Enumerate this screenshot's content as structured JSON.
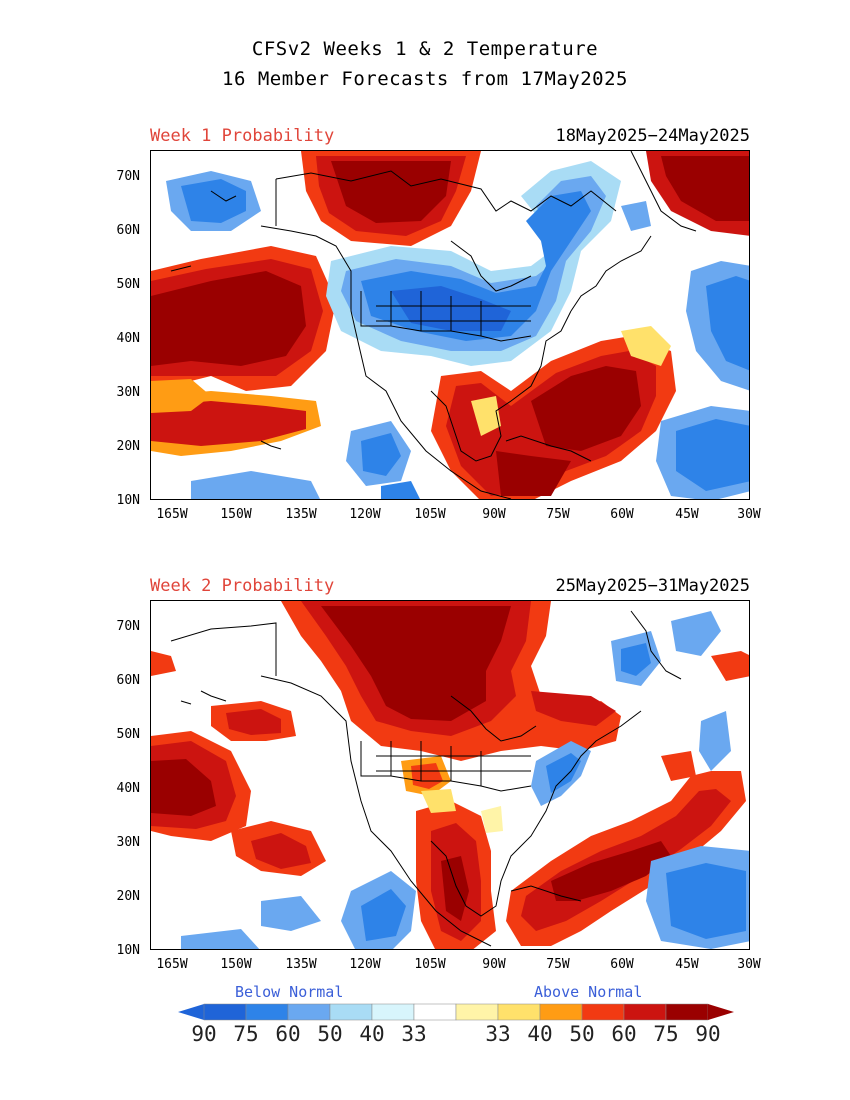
{
  "header": {
    "line1": "CFSv2 Weeks 1 & 2 Temperature",
    "line2": "16 Member Forecasts from 17May2025"
  },
  "panels": [
    {
      "label": "Week 1 Probability",
      "dates": "18May2025−24May2025"
    },
    {
      "label": "Week 2 Probability",
      "dates": "25May2025−31May2025"
    }
  ],
  "axes": {
    "lat_labels": [
      "70N",
      "60N",
      "50N",
      "40N",
      "30N",
      "20N",
      "10N"
    ],
    "lon_labels": [
      "165W",
      "150W",
      "135W",
      "120W",
      "105W",
      "90W",
      "75W",
      "60W",
      "45W",
      "30W"
    ]
  },
  "legend": {
    "below_label": "Below Normal",
    "above_label": "Above Normal",
    "values": [
      "90",
      "75",
      "60",
      "50",
      "40",
      "33",
      "33",
      "40",
      "50",
      "60",
      "75",
      "90"
    ],
    "colors": [
      "#1f64d8",
      "#2e83e8",
      "#6aa8f0",
      "#a9dcf5",
      "#d8f5fc",
      "#ffffff",
      "#fff4a8",
      "#ffe16b",
      "#ff9c14",
      "#f23a12",
      "#cc1410",
      "#9a0000"
    ],
    "end_left_color": "#1f64d8",
    "end_right_color": "#9a0000"
  }
}
